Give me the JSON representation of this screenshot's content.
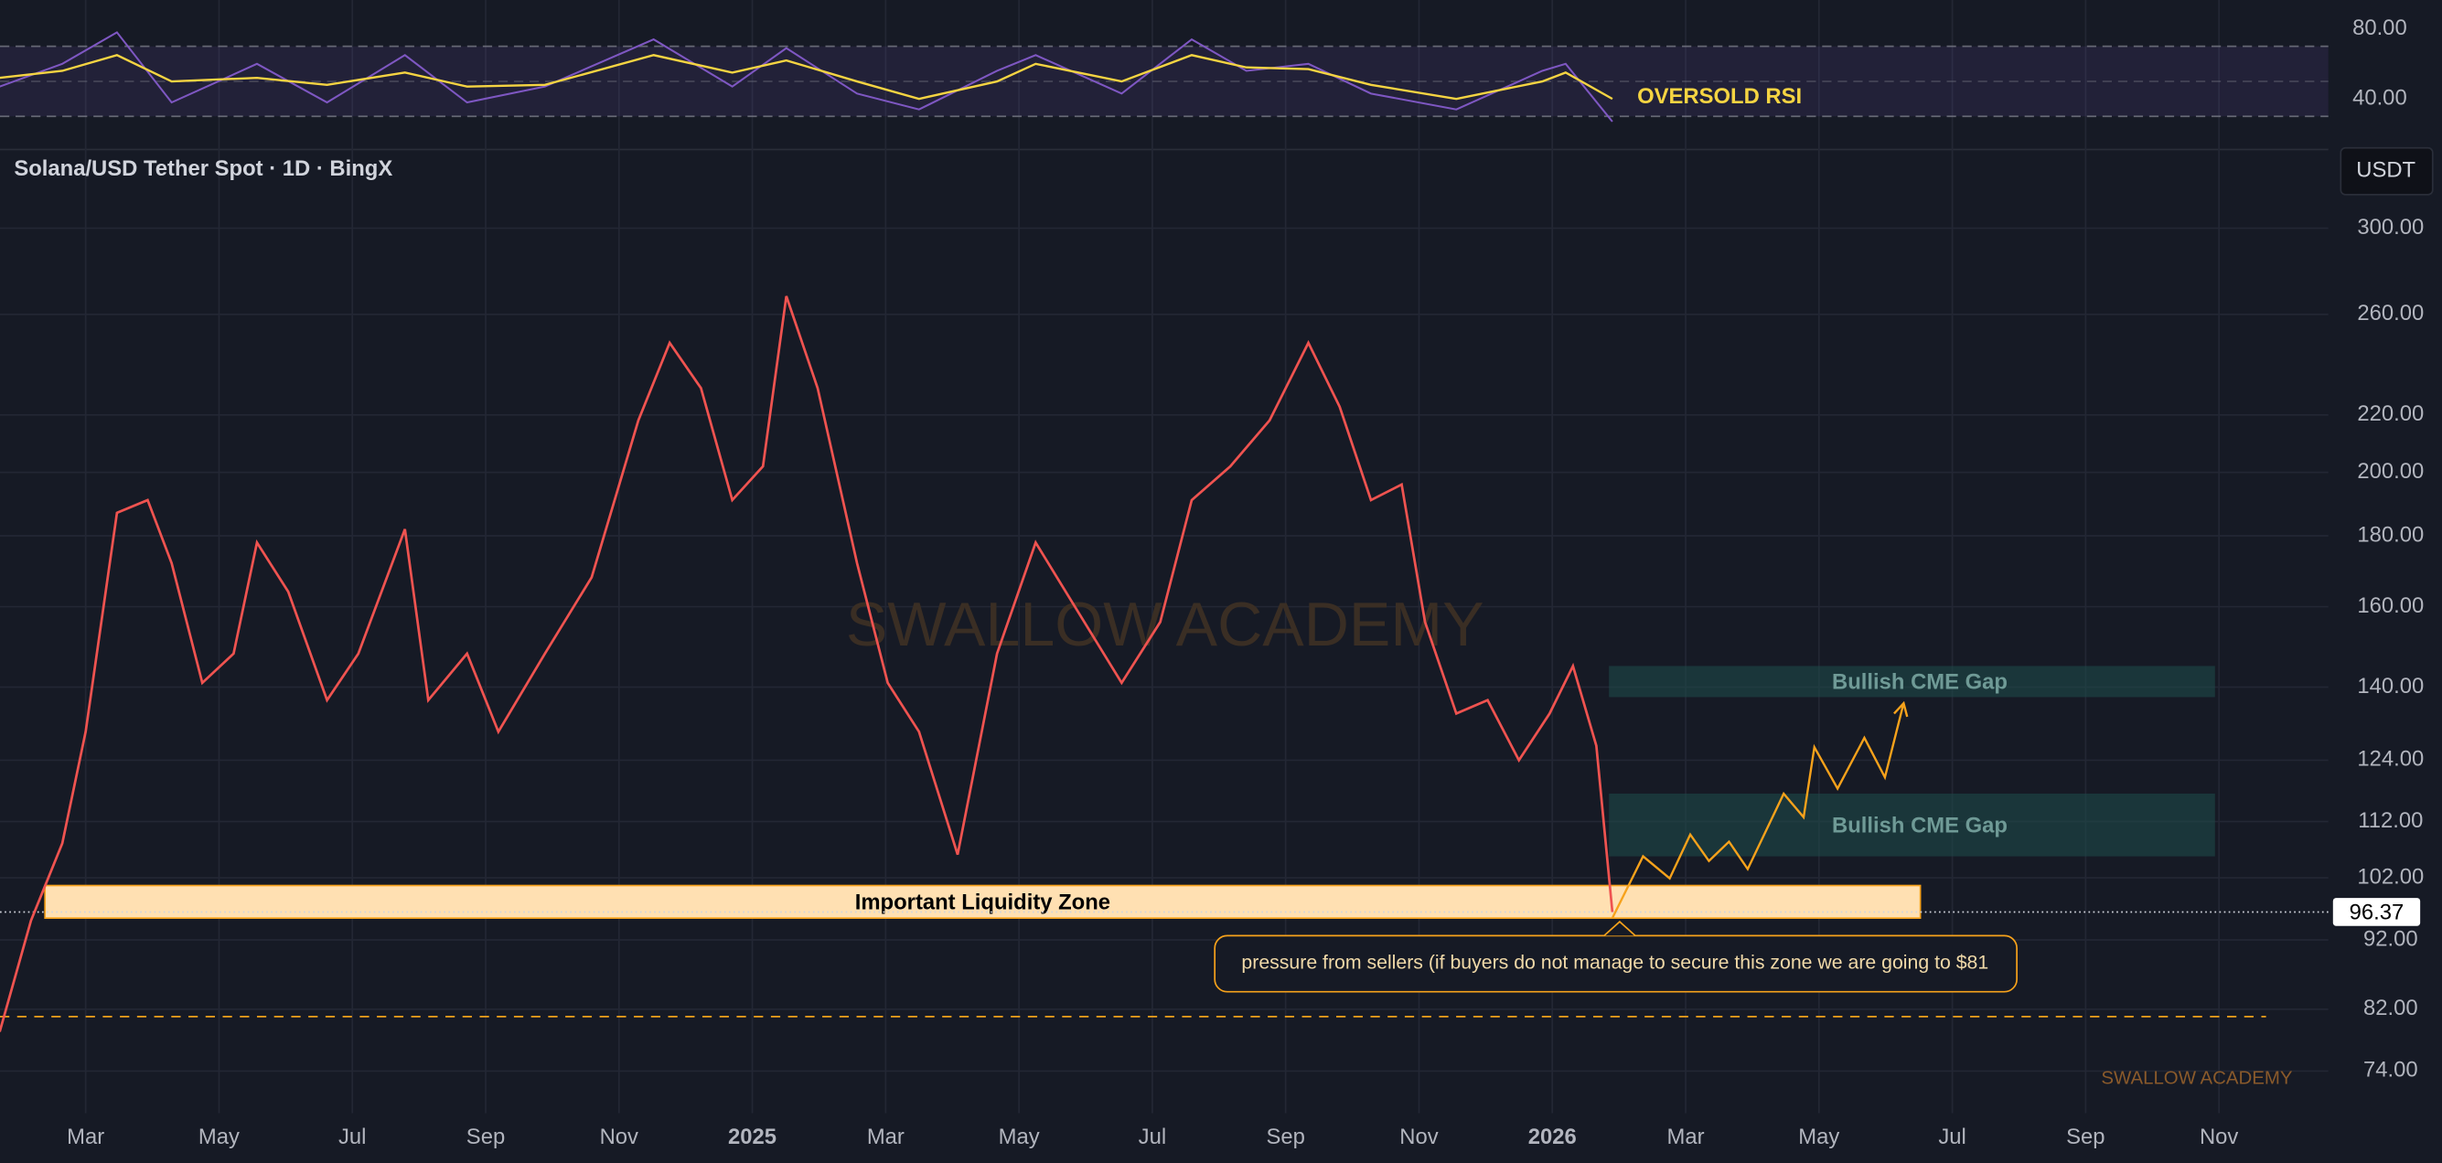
{
  "chart_data": [
    {
      "type": "line",
      "annotation": "OVERSOLD RSI",
      "ylim": [
        12,
        92
      ],
      "yticks": [
        {
          "value": 80,
          "label": "80.00"
        },
        {
          "value": 40,
          "label": "40.00"
        }
      ],
      "bands": [
        30,
        50,
        70
      ],
      "x": [
        0.71,
        1.65,
        2.47,
        3.29,
        4.57,
        5.62,
        6.79,
        7.72,
        8.89,
        10.52,
        11.7,
        12.51,
        13.57,
        14.5,
        15.67,
        16.25,
        17.54,
        18.59,
        19.41,
        20.34,
        21.28,
        22.56,
        23.85,
        24.2,
        24.9
      ],
      "series": [
        {
          "color": "#7e57c2",
          "values": [
            47,
            60,
            78,
            38,
            60,
            38,
            65,
            38,
            47,
            74,
            47,
            69,
            43,
            34,
            56,
            65,
            43,
            74,
            56,
            60,
            43,
            34,
            56,
            60,
            27
          ]
        },
        {
          "color": "#f5d442",
          "values": [
            52,
            56,
            65,
            50,
            52,
            48,
            55,
            47,
            48,
            65,
            55,
            62,
            50,
            40,
            50,
            60,
            50,
            65,
            58,
            57,
            48,
            40,
            50,
            55,
            40
          ]
        }
      ]
    },
    {
      "type": "line",
      "title": "Solana/USD Tether Spot · 1D · BingX",
      "currency": "USDT",
      "log_scale": true,
      "grid": true,
      "color": "#ef5350",
      "xlim": [
        0.715,
        35.64
      ],
      "xticks": [
        {
          "value": 2,
          "label": "Mar"
        },
        {
          "value": 4,
          "label": "May"
        },
        {
          "value": 6,
          "label": "Jul"
        },
        {
          "value": 8,
          "label": "Sep"
        },
        {
          "value": 10,
          "label": "Nov"
        },
        {
          "value": 12,
          "label": "2025"
        },
        {
          "value": 14,
          "label": "Mar"
        },
        {
          "value": 16,
          "label": "May"
        },
        {
          "value": 18,
          "label": "Jul"
        },
        {
          "value": 20,
          "label": "Sep"
        },
        {
          "value": 22,
          "label": "Nov"
        },
        {
          "value": 24,
          "label": "2026"
        },
        {
          "value": 26,
          "label": "Mar"
        },
        {
          "value": 28,
          "label": "May"
        },
        {
          "value": 30,
          "label": "Jul"
        },
        {
          "value": 32,
          "label": "Sep"
        },
        {
          "value": 34,
          "label": "Nov"
        }
      ],
      "ylim": [
        69,
        341
      ],
      "yticks": [
        {
          "value": 74,
          "label": "74.00"
        },
        {
          "value": 82,
          "label": "82.00"
        },
        {
          "value": 92,
          "label": "92.00"
        },
        {
          "value": 102,
          "label": "102.00"
        },
        {
          "value": 112,
          "label": "112.00"
        },
        {
          "value": 124,
          "label": "124.00"
        },
        {
          "value": 140,
          "label": "140.00"
        },
        {
          "value": 160,
          "label": "160.00"
        },
        {
          "value": 180,
          "label": "180.00"
        },
        {
          "value": 200,
          "label": "200.00"
        },
        {
          "value": 220,
          "label": "220.00"
        },
        {
          "value": 260,
          "label": "260.00"
        },
        {
          "value": 300,
          "label": "300.00"
        }
      ],
      "x": [
        0.71,
        1.18,
        1.65,
        2,
        2.47,
        2.93,
        3.29,
        3.75,
        4.22,
        4.57,
        5.04,
        5.62,
        6.09,
        6.79,
        7.14,
        7.72,
        8.19,
        8.89,
        9.59,
        10.29,
        10.76,
        11.23,
        11.7,
        12.16,
        12.51,
        12.98,
        13.57,
        14.03,
        14.5,
        15.08,
        15.67,
        16.25,
        16.84,
        17.54,
        18.12,
        18.59,
        19.17,
        19.76,
        20.34,
        20.81,
        21.28,
        21.74,
        22.09,
        22.56,
        23.03,
        23.5,
        23.96,
        24.31,
        24.66,
        24.9
      ],
      "values": [
        79,
        95,
        108,
        130,
        187,
        191,
        172,
        141,
        148,
        178,
        164,
        137,
        148,
        182,
        137,
        148,
        130,
        148,
        168,
        218,
        248,
        230,
        191,
        202,
        268,
        230,
        172,
        141,
        130,
        106,
        148,
        178,
        160,
        141,
        156,
        191,
        202,
        218,
        248,
        223,
        191,
        196,
        156,
        134,
        137,
        124,
        134,
        145,
        127,
        96.37
      ],
      "last_price": 96.37,
      "level": 81,
      "zones": [
        {
          "label": "Important Liquidity Zone",
          "x": [
            1.39,
            29.52
          ],
          "y": [
            95.4,
            100.7
          ],
          "color": "#ffe0b2"
        },
        {
          "label": "Bullish CME Gap",
          "x": [
            24.85,
            33.94
          ],
          "y": [
            137.7,
            145
          ],
          "color": "#1e4a4a"
        },
        {
          "label": "Bullish CME Gap",
          "x": [
            24.85,
            33.94
          ],
          "y": [
            105.7,
            117.3
          ],
          "color": "#1e4a4a"
        }
      ],
      "callout": "pressure from sellers (if buyers do not manage to secure this zone we are going to $81",
      "projection": {
        "color": "#f7a21b",
        "x": [
          24.9,
          25.36,
          25.76,
          26.07,
          26.35,
          26.65,
          26.93,
          27.47,
          27.77,
          27.93,
          28.28,
          28.68,
          28.99,
          29.27
        ],
        "values": [
          95.4,
          105.7,
          101.9,
          109.6,
          104.9,
          108.3,
          103.5,
          117.3,
          112.8,
          126.7,
          118.3,
          128.7,
          120.5,
          136.3
        ]
      },
      "watermark": "SWALLOW ACADEMY",
      "signature": "SWALLOW ACADEMY"
    }
  ]
}
